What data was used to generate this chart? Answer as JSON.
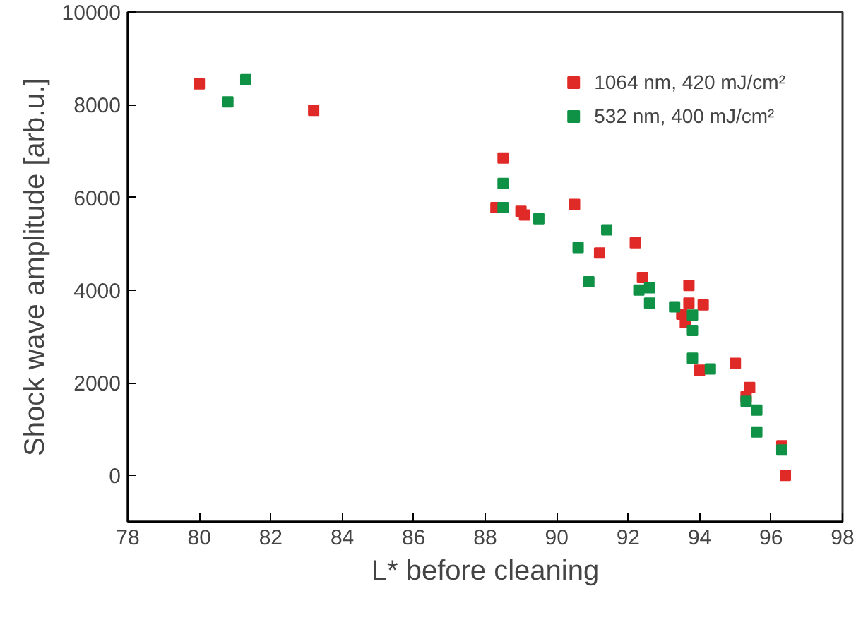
{
  "chart_data": {
    "type": "scatter",
    "xlabel": "L* before cleaning",
    "ylabel": "Shock wave amplitude [arb.u.]",
    "xlim": [
      78,
      98
    ],
    "xticks": [
      78,
      80,
      82,
      84,
      86,
      88,
      90,
      92,
      94,
      96,
      98
    ],
    "ylim": [
      -1000,
      10000
    ],
    "yticks": [
      0,
      2000,
      4000,
      6000,
      8000,
      10000
    ],
    "grid": false,
    "legend": "top right",
    "marker": "square",
    "series": [
      {
        "name": "1064 nm, 420 mJ/cm²",
        "color": "#e02a27",
        "x": [
          80.0,
          83.2,
          88.5,
          88.3,
          89.0,
          89.1,
          90.5,
          91.2,
          92.2,
          92.4,
          93.5,
          93.6,
          93.7,
          93.7,
          94.0,
          94.1,
          95.0,
          95.3,
          95.4,
          96.3,
          96.4
        ],
        "values": [
          8450,
          7880,
          6850,
          5780,
          5700,
          5620,
          5850,
          4800,
          5020,
          4270,
          3480,
          3300,
          4100,
          3720,
          2270,
          3680,
          2420,
          1700,
          1900,
          640,
          0
        ]
      },
      {
        "name": "532 nm, 400 mJ/cm²",
        "color": "#0f9146",
        "x": [
          80.8,
          81.3,
          88.5,
          88.5,
          89.5,
          90.6,
          90.9,
          91.4,
          92.3,
          92.6,
          92.6,
          93.3,
          93.8,
          93.8,
          93.8,
          94.3,
          95.3,
          95.6,
          95.6,
          96.3
        ],
        "values": [
          8060,
          8540,
          6300,
          5780,
          5540,
          4920,
          4180,
          5300,
          4000,
          4050,
          3720,
          3640,
          3460,
          3130,
          2530,
          2300,
          1600,
          1410,
          940,
          550
        ]
      }
    ]
  }
}
